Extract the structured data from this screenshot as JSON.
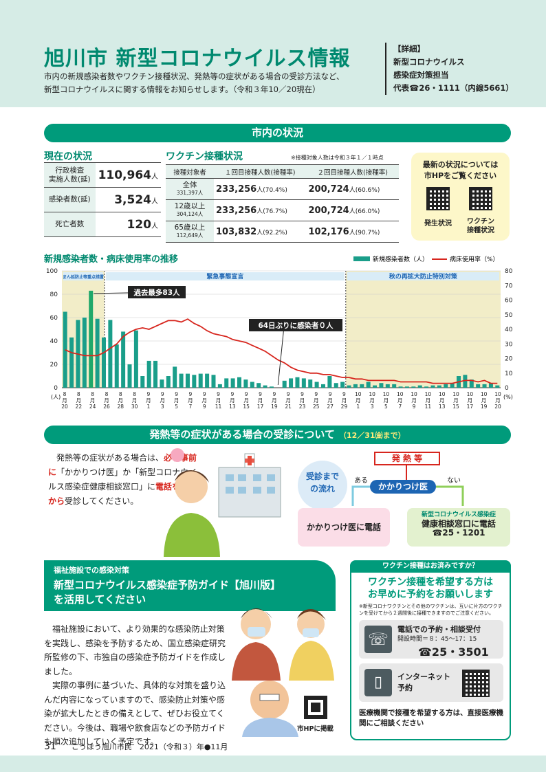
{
  "header": {
    "title": "旭川市 新型コロナウイルス情報",
    "lead_1": "市内の新規感染者数やワクチン接種状況、発熱等の症状がある場合の受診方法など、",
    "lead_2": "新型コロナウイルスに関する情報をお知らせします。（令和３年10／20現在）",
    "detail_1": "【詳細】",
    "detail_2": "新型コロナウイルス",
    "detail_3": "感染症対策担当",
    "detail_4": "代表☎26・1111（内線5661）"
  },
  "status": {
    "section_title": "市内の状況",
    "current_title": "現在の状況",
    "current_rows": [
      {
        "label_1": "行政検査",
        "label_2": "実施人数(延)",
        "value": "110,964",
        "unit": "人"
      },
      {
        "label_1": "感染者数(延)",
        "label_2": "",
        "value": "3,524",
        "unit": "人"
      },
      {
        "label_1": "死亡者数",
        "label_2": "",
        "value": "120",
        "unit": "人"
      }
    ],
    "vaccine_title": "ワクチン接種状況",
    "vaccine_note": "※接種対象人数は令和３年１／１時点",
    "vaccine_headers": [
      "接種対象者",
      "１回目接種人数(接種率)",
      "２回目接種人数(接種率)"
    ],
    "vaccine_rows": [
      {
        "group": "全体",
        "count": "331,397人",
        "first": "233,256",
        "first_rate": "人(70.4%)",
        "second": "200,724",
        "second_rate": "人(60.6%)"
      },
      {
        "group": "12歳以上",
        "count": "304,124人",
        "first": "233,256",
        "first_rate": "人(76.7%)",
        "second": "200,724",
        "second_rate": "人(66.0%)"
      },
      {
        "group": "65歳以上",
        "count": "112,649人",
        "first": "103,832",
        "first_rate": "人(92.2%)",
        "second": "102,176",
        "second_rate": "人(90.7%)"
      }
    ],
    "qr_text_1": "最新の状況については",
    "qr_text_2": "市HPをご覧ください",
    "qr_label_1": "発生状況",
    "qr_label_2a": "ワクチン",
    "qr_label_2b": "接種状況"
  },
  "chart_data": {
    "type": "bar",
    "title": "新規感染者数・病床使用率の推移",
    "legend_bar": "新規感染者数（人）",
    "legend_line": "病床使用率（%）",
    "y_left_unit": "(人)",
    "y_right_unit": "(%)",
    "ylim": [
      0,
      100
    ],
    "ylim_right": [
      0,
      80
    ],
    "y_ticks": [
      "0",
      "20",
      "40",
      "60",
      "80",
      "100"
    ],
    "y_right_ticks": [
      "0",
      "10",
      "20",
      "30",
      "40",
      "50",
      "60",
      "70",
      "80"
    ],
    "periods": [
      "まん延防止等重点措置",
      "緊急事態宣言",
      "秋の再拡大防止特別対策"
    ],
    "annotation_1": "過去最多83人",
    "annotation_2": "64日ぶりに感染者０人",
    "tick_labels": [
      {
        "m": "8",
        "d": "20"
      },
      {
        "m": "8",
        "d": "22"
      },
      {
        "m": "8",
        "d": "24"
      },
      {
        "m": "8",
        "d": "26"
      },
      {
        "m": "8",
        "d": "28"
      },
      {
        "m": "8",
        "d": "30"
      },
      {
        "m": "9",
        "d": "1"
      },
      {
        "m": "9",
        "d": "3"
      },
      {
        "m": "9",
        "d": "5"
      },
      {
        "m": "9",
        "d": "7"
      },
      {
        "m": "9",
        "d": "9"
      },
      {
        "m": "9",
        "d": "11"
      },
      {
        "m": "9",
        "d": "13"
      },
      {
        "m": "9",
        "d": "15"
      },
      {
        "m": "9",
        "d": "17"
      },
      {
        "m": "9",
        "d": "19"
      },
      {
        "m": "9",
        "d": "21"
      },
      {
        "m": "9",
        "d": "23"
      },
      {
        "m": "9",
        "d": "25"
      },
      {
        "m": "9",
        "d": "27"
      },
      {
        "m": "9",
        "d": "29"
      },
      {
        "m": "10",
        "d": "1"
      },
      {
        "m": "10",
        "d": "3"
      },
      {
        "m": "10",
        "d": "5"
      },
      {
        "m": "10",
        "d": "7"
      },
      {
        "m": "10",
        "d": "9"
      },
      {
        "m": "10",
        "d": "11"
      },
      {
        "m": "10",
        "d": "13"
      },
      {
        "m": "10",
        "d": "15"
      },
      {
        "m": "10",
        "d": "17"
      },
      {
        "m": "10",
        "d": "19"
      },
      {
        "m": "10",
        "d": "20"
      }
    ],
    "cases": [
      65,
      43,
      58,
      60,
      83,
      59,
      43,
      58,
      37,
      48,
      20,
      49,
      10,
      23,
      23,
      7,
      10,
      18,
      12,
      12,
      11,
      12,
      12,
      11,
      3,
      8,
      8,
      9,
      7,
      5,
      4,
      2,
      1,
      0,
      6,
      8,
      9,
      8,
      7,
      5,
      3,
      10,
      4,
      5,
      2,
      3,
      3,
      5,
      2,
      4,
      3,
      3,
      1,
      1,
      1,
      2,
      1,
      2,
      2,
      3,
      4,
      10,
      11,
      7,
      3,
      3,
      4,
      2
    ],
    "bed_rate": [
      26,
      24,
      23,
      22,
      22,
      22,
      24,
      27,
      30,
      35,
      38,
      40,
      41,
      40,
      42,
      44,
      46,
      46,
      45,
      47,
      44,
      42,
      39,
      37,
      36,
      35,
      33,
      32,
      31,
      29,
      27,
      25,
      22,
      19,
      17,
      14,
      12,
      11,
      10,
      10,
      9,
      9,
      8,
      7,
      7,
      6,
      6,
      5,
      5,
      5,
      5,
      5,
      4,
      4,
      4,
      4,
      4,
      3,
      3,
      3,
      3,
      4,
      5,
      5,
      4,
      5,
      3,
      3
    ]
  },
  "symptoms": {
    "section_title": "発熱等の症状がある場合の受診について",
    "section_sub": "（12／31㈮まで）",
    "text_1": "発熱等の症状がある場合は、",
    "text_red_1": "必ず事前に",
    "text_2": "「かかりつけ医」か「新型コロナウイルス感染症健康相談窓口」に",
    "text_red_2": "電話をしてから",
    "text_3": "受診してください。",
    "flow_label_1": "受診まで",
    "flow_label_2": "の流れ",
    "fever": "発 熱 等",
    "clinic": "かかりつけ医",
    "yes": "ある",
    "no": "ない",
    "pink": "かかりつけ医に電話",
    "green_1": "新型コロナウイルス感染症",
    "green_2": "健康相談窓口に電話",
    "green_3": "☎25・1201"
  },
  "welfare": {
    "kicker": "福祉施設での感染対策",
    "title_1": "新型コロナウイルス感染症予防ガイド【旭川版】",
    "title_2": "を活用してください",
    "para_1": "福祉施設において、より効果的な感染防止対策を実践し、感染を予防するため、国立感染症研究所監修の下、市独自の感染症予防ガイドを作成しました。",
    "para_2": "実際の事例に基づいた、具体的な対策を盛り込んだ内容になっていますので、感染防止対策や感染が拡大したときの備えとして、ぜひお役立てください。今後は、職場や飲食店などの予防ガイドも順次追加していく予定です。",
    "qr_label": "市HPに掲載"
  },
  "vaccine_box": {
    "top": "ワクチン接種はお済みですか？",
    "head_1": "ワクチン接種を希望する方は",
    "head_2": "お早めに予約をお願いします",
    "note": "※新型コロナワクチンとその他のワクチンは、互いに片方のワクチンを受けてから２週間後に接種できますのでご注意ください。",
    "phone_title": "電話での予約・相談受付",
    "phone_hours": "開設時間＝８：45～17：15",
    "phone_number": "☎25・3501",
    "net_1": "インターネット",
    "net_2": "予約",
    "footer_text": "医療機関で接種を希望する方は、直接医療機関にご相談ください"
  },
  "footer": {
    "page": "31",
    "text": "こうほう旭川市民　2021（令和３）年●11月"
  }
}
